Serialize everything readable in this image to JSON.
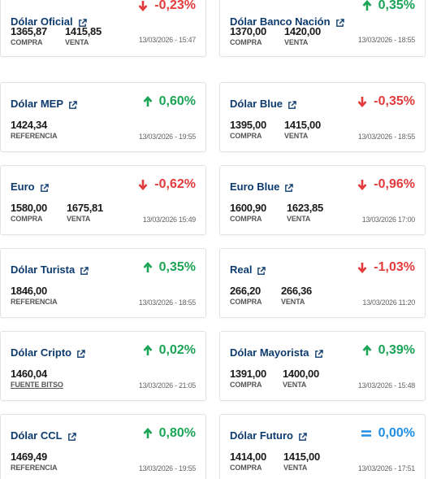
{
  "cards": [
    {
      "title": "Dólar Oficial",
      "change": "-0,23%",
      "dir": "down",
      "v1": "1365,87",
      "l1": "COMPRA",
      "v2": "1415,85",
      "l2": "VENTA",
      "date": "13/03/2026 - 15:47"
    },
    {
      "title": "Dólar Banco Nación",
      "change": "0,35%",
      "dir": "up",
      "v1": "1370,00",
      "l1": "COMPRA",
      "v2": "1420,00",
      "l2": "VENTA",
      "date": "13/03/2026 - 18:55"
    },
    {
      "title": "Dólar MEP",
      "change": "0,60%",
      "dir": "up",
      "v1": "1424,34",
      "l1": "REFERENCIA",
      "v2": "",
      "l2": "",
      "date": "13/03/2026 - 19:55"
    },
    {
      "title": "Dólar Blue",
      "change": "-0,35%",
      "dir": "down",
      "v1": "1395,00",
      "l1": "COMPRA",
      "v2": "1415,00",
      "l2": "VENTA",
      "date": "13/03/2026 - 18:55"
    },
    {
      "title": "Euro",
      "change": "-0,62%",
      "dir": "down",
      "v1": "1580,00",
      "l1": "COMPRA",
      "v2": "1675,81",
      "l2": "VENTA",
      "date": "13/03/2026 15:49"
    },
    {
      "title": "Euro Blue",
      "change": "-0,96%",
      "dir": "down",
      "v1": "1600,90",
      "l1": "COMPRA",
      "v2": "1623,85",
      "l2": "VENTA",
      "date": "13/03/2026 17:00"
    },
    {
      "title": "Dólar Turista",
      "change": "0,35%",
      "dir": "up",
      "v1": "1846,00",
      "l1": "REFERENCIA",
      "v2": "",
      "l2": "",
      "date": "13/03/2026 - 18:55"
    },
    {
      "title": "Real",
      "change": "-1,03%",
      "dir": "down",
      "v1": "266,20",
      "l1": "COMPRA",
      "v2": "266,36",
      "l2": "VENTA",
      "date": "13/03/2026 11:20"
    },
    {
      "title": "Dólar Cripto",
      "change": "0,02%",
      "dir": "up",
      "v1": "1460,04",
      "l1": "FUENTE BITSO",
      "v2": "",
      "l2": "",
      "date": "13/03/2026 - 21:05"
    },
    {
      "title": "Dólar Mayorista",
      "change": "0,39%",
      "dir": "up",
      "v1": "1391,00",
      "l1": "COMPRA",
      "v2": "1400,00",
      "l2": "VENTA",
      "date": "13/03/2026 - 15:48"
    },
    {
      "title": "Dólar CCL",
      "change": "0,80%",
      "dir": "up",
      "v1": "1469,49",
      "l1": "REFERENCIA",
      "v2": "",
      "l2": "",
      "date": "13/03/2026 - 19:55"
    },
    {
      "title": "Dólar Futuro",
      "change": "0,00%",
      "dir": "eq",
      "v1": "1414,00",
      "l1": "COMPRA",
      "v2": "1415,00",
      "l2": "VENTA",
      "date": "13/03/2026 - 17:51"
    }
  ],
  "colors": {
    "up": "#1ca456",
    "down": "#e33b3b",
    "eq": "#1f8fe6",
    "title": "#0d3b6e"
  },
  "icons": {
    "external": "external-link-icon",
    "up": "arrow-up-icon",
    "down": "arrow-down-icon",
    "eq": "equals-icon"
  }
}
